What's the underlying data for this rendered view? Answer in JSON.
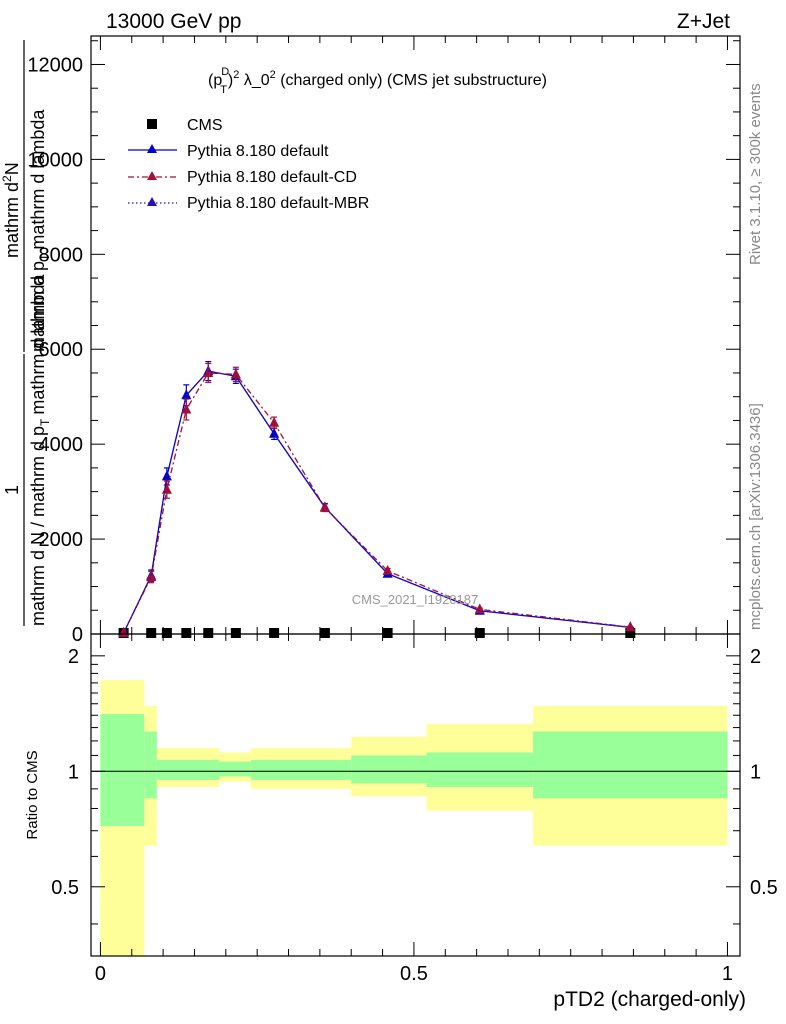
{
  "header": {
    "left": "13000 GeV pp",
    "right": "Z+Jet"
  },
  "side_texts": {
    "rivet": "Rivet 3.1.10, ≥ 300k events",
    "mcplots": "mcplots.cern.ch [arXiv:1306.3436]"
  },
  "watermark": "CMS_2021_I1920187",
  "colors": {
    "cd": "#a50f35",
    "mbr": "#2c0fb0",
    "default": "#0000cc",
    "band_outer": "#ffff99",
    "band_inner": "#99ff99"
  },
  "chart_data": [
    {
      "type": "line",
      "title_parts": {
        "base": "(p",
        "sup_d": "D",
        "sub_t": "T",
        "close": ")",
        "sup_2": "2",
        "rest": " λ_0",
        "sup_2b": "2",
        "tail": " (charged only) (CMS jet substructure)"
      },
      "ylabel": {
        "numerator": "1",
        "denominator": "mathrm d N / mathrm d p",
        "denominator_sub": "T",
        "denominator_tail": "mathrm d lambda",
        "inner_numerator": "mathrm d",
        "inner_numerator_sup": "2",
        "inner_numerator_tail": "N",
        "inner_denominator": "mathrm d p",
        "inner_denominator_sub": "T",
        "inner_denominator_tail": "mathrm d lambda"
      },
      "xlim": [
        -0.015,
        1.02
      ],
      "ylim": [
        0,
        12600
      ],
      "yticks": [
        0,
        2000,
        4000,
        6000,
        8000,
        10000,
        12000
      ],
      "ytick_labels": [
        "0",
        "2000",
        "4000",
        "6000",
        "8000",
        "10000",
        "12000"
      ],
      "legend": [
        "CMS",
        "Pythia 8.180 default",
        "Pythia 8.180 default-CD",
        "Pythia 8.180 default-MBR"
      ],
      "series": [
        {
          "name": "CMS",
          "style": "square",
          "x": [
            0.037,
            0.081,
            0.106,
            0.137,
            0.172,
            0.216,
            0.277,
            0.358,
            0.458,
            0.605,
            0.845
          ],
          "y": [
            0,
            0,
            0,
            0,
            0,
            0,
            0,
            0,
            0,
            0,
            0
          ]
        },
        {
          "name": "Pythia 8.180 default",
          "style": "solid",
          "x": [
            0.037,
            0.081,
            0.106,
            0.137,
            0.172,
            0.216,
            0.277,
            0.358,
            0.458,
            0.605,
            0.845
          ],
          "y": [
            20,
            1230,
            3320,
            5030,
            5540,
            5430,
            4220,
            2670,
            1270,
            490,
            140
          ],
          "err": [
            15,
            120,
            180,
            220,
            200,
            150,
            120,
            80,
            50,
            25,
            15
          ]
        },
        {
          "name": "Pythia 8.180 default-CD",
          "style": "dashdot",
          "x": [
            0.037,
            0.081,
            0.106,
            0.137,
            0.172,
            0.216,
            0.277,
            0.358,
            0.458,
            0.605,
            0.845
          ],
          "y": [
            25,
            1200,
            3040,
            4730,
            5500,
            5470,
            4450,
            2660,
            1330,
            520,
            145
          ],
          "err": [
            15,
            120,
            180,
            220,
            200,
            150,
            120,
            80,
            50,
            25,
            15
          ]
        },
        {
          "name": "Pythia 8.180 default-MBR",
          "style": "dotted",
          "x": [
            0.037,
            0.081,
            0.106,
            0.137,
            0.172,
            0.216,
            0.277,
            0.358,
            0.458,
            0.605,
            0.845
          ],
          "y": [
            20,
            1230,
            3320,
            5030,
            5540,
            5430,
            4220,
            2670,
            1270,
            490,
            140
          ]
        }
      ]
    },
    {
      "type": "area",
      "ylabel": "Ratio to CMS",
      "xlabel": "pTD2 (charged-only)",
      "xlim": [
        -0.015,
        1.02
      ],
      "ylim": [
        0.33,
        2.28
      ],
      "yticks": [
        0.5,
        1,
        2
      ],
      "ytick_labels": [
        "0.5",
        "1",
        "2"
      ],
      "xticks": [
        0,
        0.5,
        1
      ],
      "xtick_labels": [
        "0",
        "0.5",
        "1"
      ],
      "reference": 1,
      "bins": [
        {
          "lo": 0.0,
          "hi": 0.07,
          "in_lo": 0.72,
          "in_hi": 1.41,
          "out_lo": 0.0,
          "out_hi": 1.73
        },
        {
          "lo": 0.07,
          "hi": 0.09,
          "in_lo": 0.85,
          "in_hi": 1.27,
          "out_lo": 0.64,
          "out_hi": 1.48
        },
        {
          "lo": 0.09,
          "hi": 0.19,
          "in_lo": 0.95,
          "in_hi": 1.07,
          "out_lo": 0.91,
          "out_hi": 1.15
        },
        {
          "lo": 0.19,
          "hi": 0.24,
          "in_lo": 0.97,
          "in_hi": 1.06,
          "out_lo": 0.94,
          "out_hi": 1.12
        },
        {
          "lo": 0.24,
          "hi": 0.4,
          "in_lo": 0.95,
          "in_hi": 1.07,
          "out_lo": 0.9,
          "out_hi": 1.15
        },
        {
          "lo": 0.4,
          "hi": 0.52,
          "in_lo": 0.93,
          "in_hi": 1.1,
          "out_lo": 0.86,
          "out_hi": 1.23
        },
        {
          "lo": 0.52,
          "hi": 0.69,
          "in_lo": 0.91,
          "in_hi": 1.12,
          "out_lo": 0.79,
          "out_hi": 1.33
        },
        {
          "lo": 0.69,
          "hi": 1.0,
          "in_lo": 0.85,
          "in_hi": 1.27,
          "out_lo": 0.64,
          "out_hi": 1.48
        }
      ]
    }
  ]
}
